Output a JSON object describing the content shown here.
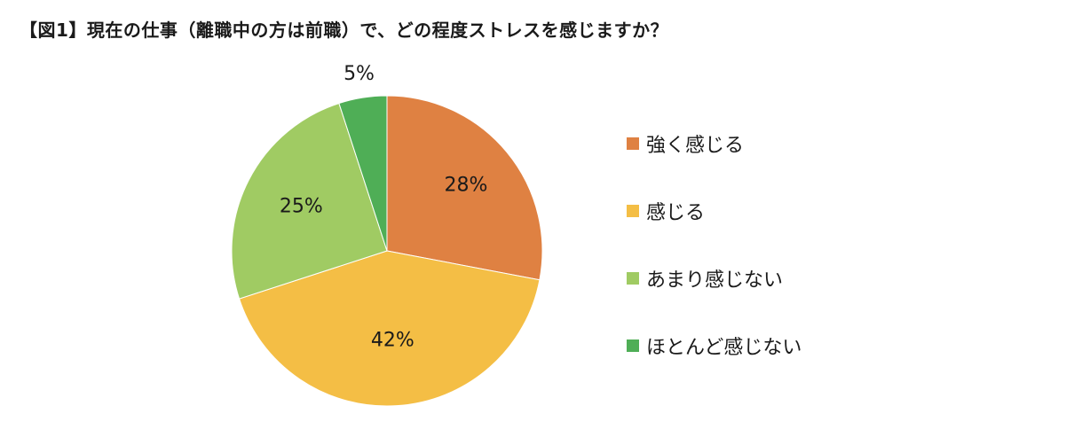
{
  "title": "【図1】現在の仕事（離職中の方は前職）で、どの程度ストレスを感じますか？",
  "chart_data": {
    "type": "pie",
    "title": "【図1】現在の仕事（離職中の方は前職）で、どの程度ストレスを感じますか？",
    "slices": [
      {
        "label": "強く感じる",
        "value": 28,
        "display": "28%",
        "color": "#df8142"
      },
      {
        "label": "感じる",
        "value": 42,
        "display": "42%",
        "color": "#f4be45"
      },
      {
        "label": "あまり感じない",
        "value": 25,
        "display": "25%",
        "color": "#a0cb63"
      },
      {
        "label": "ほとんど感じない",
        "value": 5,
        "display": "5%",
        "color": "#4fae56"
      }
    ],
    "start_angle": "12 o'clock",
    "direction": "clockwise",
    "legend_position": "right"
  }
}
